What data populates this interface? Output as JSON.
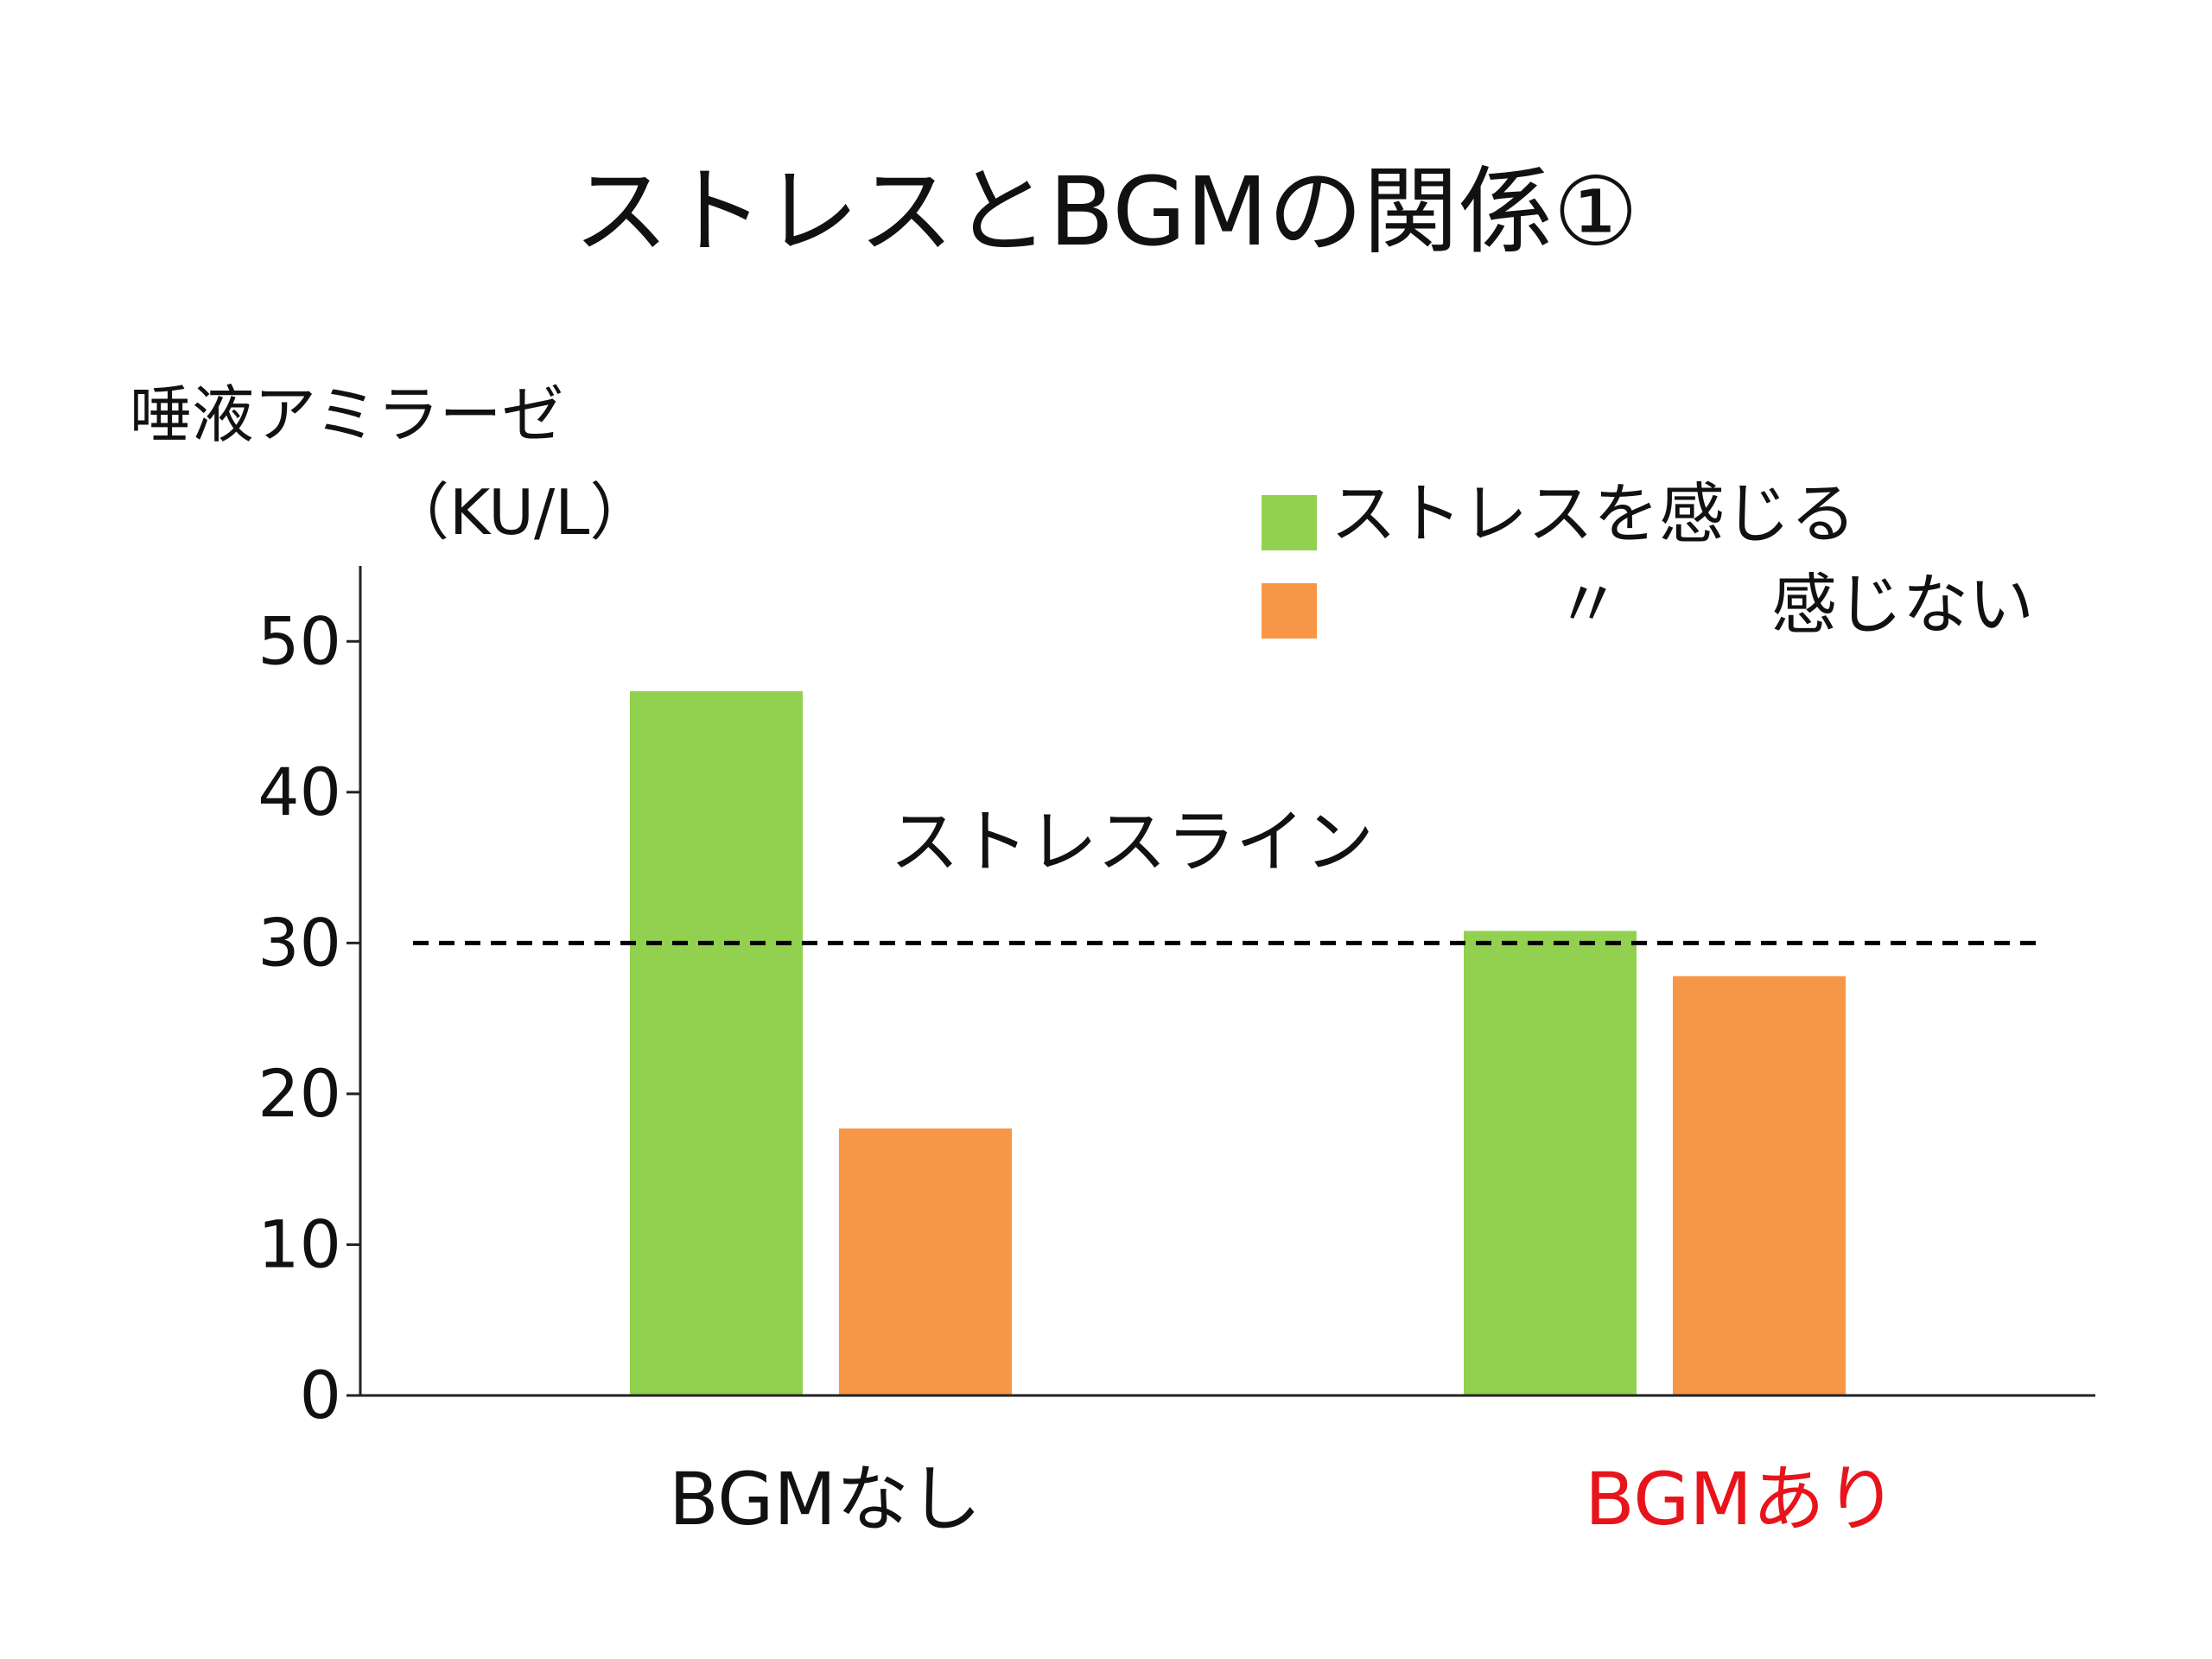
{
  "slide": {
    "title": "ストレスとBGMの関係①"
  },
  "chart_data": {
    "type": "bar",
    "title": "ストレスとBGMの関係①",
    "ylabel_line1": "唾液アミラーゼ",
    "ylabel_line2": "（KU/L）",
    "xlabel": "",
    "categories": [
      "BGMなし",
      "BGMあり"
    ],
    "category_colors": [
      "#111111",
      "#e8141b"
    ],
    "series": [
      {
        "name": "ストレスを感じる",
        "values": [
          46.7,
          30.8
        ],
        "color": "#92d050"
      },
      {
        "name": "感じない",
        "values": [
          17.7,
          27.8
        ],
        "color": "#f79646"
      }
    ],
    "legend_marks": {
      "ditto": "〃"
    },
    "ylim": [
      0,
      55
    ],
    "yticks": [
      0,
      10,
      20,
      30,
      40,
      50
    ],
    "grid": false,
    "legend_position": "top-right",
    "reference_line": {
      "value": 30,
      "label": "ストレスライン",
      "style": "dashed",
      "color": "#000000"
    }
  }
}
